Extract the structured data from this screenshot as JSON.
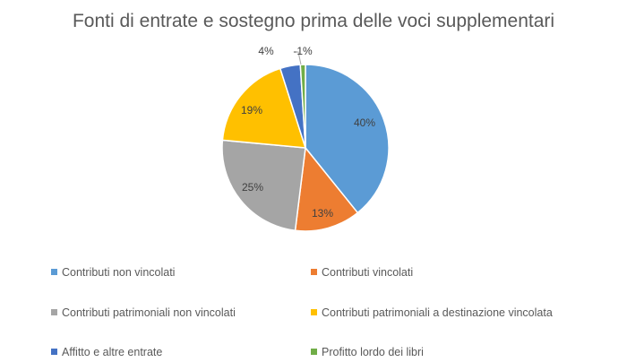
{
  "chart_data": {
    "type": "pie",
    "title": "Fonti di entrate e sostegno prima delle voci supplementari",
    "slices": [
      {
        "label": "Contributi non vincolati",
        "value": 40,
        "display": "40%",
        "color": "#5B9BD5"
      },
      {
        "label": "Contributi vincolati",
        "value": 13,
        "display": "13%",
        "color": "#ED7D31"
      },
      {
        "label": "Contributi patrimoniali non vincolati",
        "value": 25,
        "display": "25%",
        "color": "#A5A5A5"
      },
      {
        "label": "Contributi patrimoniali a destinazione vincolata",
        "value": 19,
        "display": "19%",
        "color": "#FFC000"
      },
      {
        "label": "Affitto e altre entrate",
        "value": 4,
        "display": "4%",
        "color": "#4472C4"
      },
      {
        "label": "Profitto lordo dei libri",
        "value": -1,
        "display": "-1%",
        "color": "#70AD47"
      }
    ],
    "legend_position": "bottom"
  }
}
